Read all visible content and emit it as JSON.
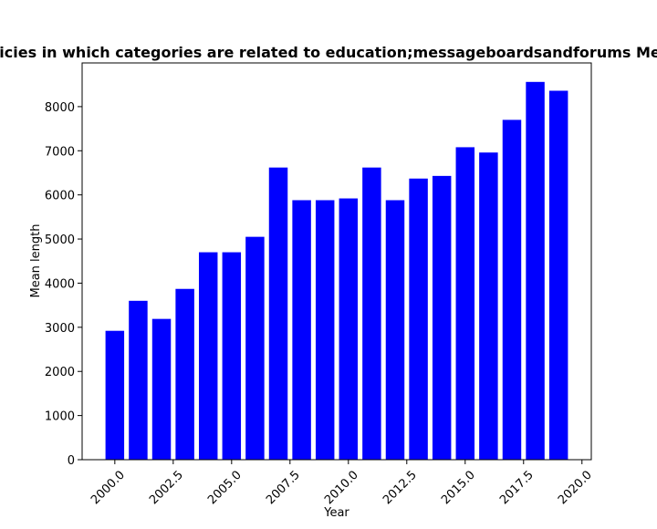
{
  "chart_data": {
    "type": "bar",
    "title": "Mean length of privacy policies in which categories are related to education;messageboardsandforums Mean length in privacy policies",
    "xlabel": "Year",
    "ylabel": "Mean length",
    "x": [
      2000,
      2001,
      2002,
      2003,
      2004,
      2005,
      2006,
      2007,
      2008,
      2009,
      2010,
      2011,
      2012,
      2013,
      2014,
      2015,
      2016,
      2017,
      2018,
      2019
    ],
    "values": [
      2920,
      3600,
      3190,
      3870,
      4700,
      4700,
      5050,
      6620,
      5880,
      5880,
      5920,
      6620,
      5880,
      6370,
      6430,
      7080,
      6960,
      7700,
      8560,
      8360
    ],
    "xlim": [
      1998.6,
      2020.4
    ],
    "ylim": [
      0,
      8990
    ],
    "xticks": [
      2000.0,
      2002.5,
      2005.0,
      2007.5,
      2010.0,
      2012.5,
      2015.0,
      2017.5,
      2020.0
    ],
    "xtick_labels": [
      "2000.0",
      "2002.5",
      "2005.0",
      "2007.5",
      "2010.0",
      "2012.5",
      "2015.0",
      "2017.5",
      "2020.0"
    ],
    "yticks": [
      0,
      1000,
      2000,
      3000,
      4000,
      5000,
      6000,
      7000,
      8000
    ],
    "ytick_labels": [
      "0",
      "1000",
      "2000",
      "3000",
      "4000",
      "5000",
      "6000",
      "7000",
      "8000"
    ],
    "bar_width": 0.8,
    "bar_color": "#0000ff",
    "grid": false,
    "legend": "none"
  }
}
